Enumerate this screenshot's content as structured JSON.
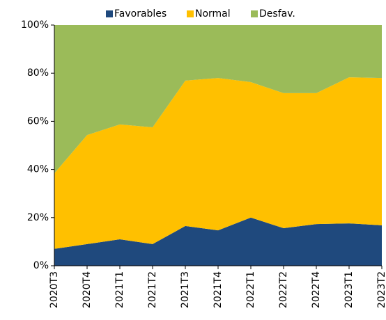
{
  "chart_data": {
    "type": "stacked_area",
    "categories": [
      "2020T3",
      "2020T4",
      "2021T1",
      "2021T2",
      "2021T3",
      "2021T4",
      "2022T1",
      "2022T2",
      "2022T4",
      "2023T1",
      "2023T2"
    ],
    "series": [
      {
        "name": "Favorables",
        "color": "#1f497d",
        "values": [
          7,
          9,
          11,
          9,
          16.5,
          14.7,
          20,
          15.6,
          17.3,
          17.6,
          16.8
        ]
      },
      {
        "name": "Normal",
        "color": "#ffc000",
        "values": [
          31.4,
          45.3,
          47.7,
          48.5,
          60.4,
          63.3,
          56.3,
          56.1,
          54.4,
          60.7,
          61.2
        ]
      },
      {
        "name": "Desfav.",
        "color": "#9bbb59",
        "values": [
          61.6,
          45.7,
          41.3,
          42.5,
          23.1,
          22,
          23.7,
          28.3,
          28.3,
          21.7,
          22
        ]
      }
    ],
    "ylim": [
      0,
      100
    ],
    "yticks": [
      {
        "value": 0,
        "label": "0%"
      },
      {
        "value": 20,
        "label": "20%"
      },
      {
        "value": 40,
        "label": "40%"
      },
      {
        "value": 60,
        "label": "60%"
      },
      {
        "value": 80,
        "label": "80%"
      },
      {
        "value": 100,
        "label": "100%"
      }
    ],
    "legend": "top"
  }
}
